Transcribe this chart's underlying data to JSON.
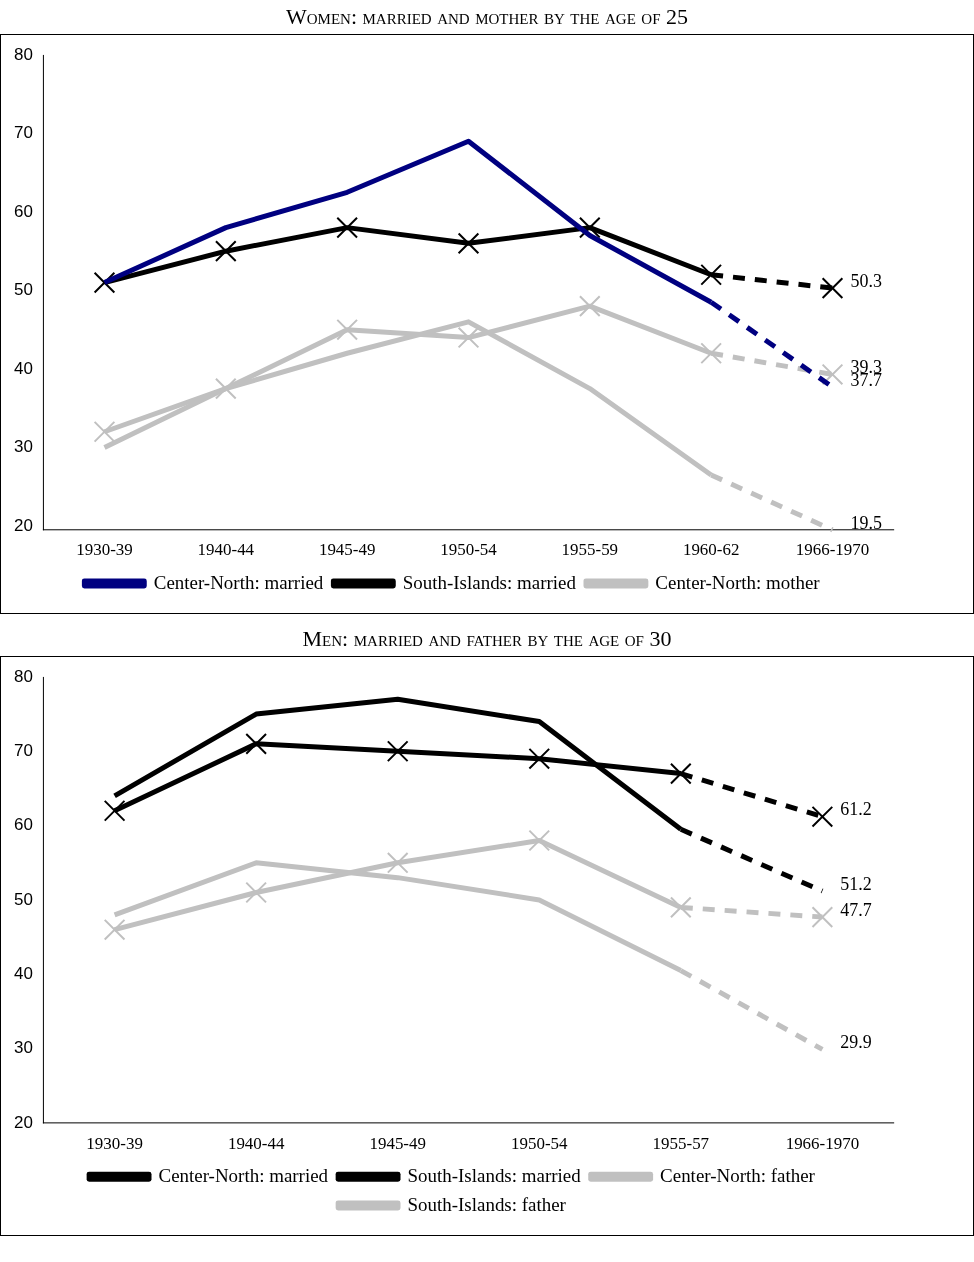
{
  "chart_data": [
    {
      "type": "line",
      "title": "Women: married and mother by the age of 25",
      "categories": [
        "1930-39",
        "1940-44",
        "1945-49",
        "1950-54",
        "1955-59",
        "1960-62",
        "1966-1970"
      ],
      "ylim": [
        19.5,
        80
      ],
      "yticks": [
        20,
        30,
        40,
        50,
        60,
        70,
        80
      ],
      "grid": false,
      "legend": "bottom",
      "series": [
        {
          "name": "Center-North: married",
          "color": "#000080",
          "marker": "none",
          "line_style": "solid",
          "values": [
            51,
            58,
            62.5,
            69,
            57,
            48.5,
            null
          ]
        },
        {
          "name": "South-Islands: married",
          "color": "#000000",
          "marker": "cross",
          "line_style": "solid",
          "values": [
            51,
            55,
            58,
            56,
            58,
            52,
            null
          ]
        },
        {
          "name": "Center-North: mother",
          "color": "#c0c0c0",
          "marker": "none",
          "line_style": "solid",
          "values": [
            30,
            37.5,
            42,
            46,
            37.5,
            26.5,
            null
          ]
        },
        {
          "color": "#c0c0c0",
          "marker": "cross",
          "line_style": "solid",
          "values": [
            32,
            37.5,
            45,
            44,
            48,
            42,
            null
          ]
        },
        {
          "color": "#000080",
          "marker": "none",
          "line_style": "dashed",
          "values": [
            null,
            null,
            null,
            null,
            null,
            48.5,
            37.7
          ],
          "value_labels": [
            null,
            null,
            null,
            null,
            null,
            null,
            "37.7"
          ]
        },
        {
          "color": "#000000",
          "marker": "cross",
          "line_style": "dashed",
          "values": [
            null,
            null,
            null,
            null,
            null,
            52,
            50.3
          ],
          "value_labels": [
            null,
            null,
            null,
            null,
            null,
            null,
            "50.3"
          ]
        },
        {
          "color": "#c0c0c0",
          "marker": "none",
          "line_style": "dashed",
          "values": [
            null,
            null,
            null,
            null,
            null,
            26.5,
            19.5
          ],
          "value_labels": [
            null,
            null,
            null,
            null,
            null,
            null,
            "19.5"
          ]
        },
        {
          "color": "#c0c0c0",
          "marker": "cross",
          "line_style": "dashed",
          "values": [
            null,
            null,
            null,
            null,
            null,
            42,
            39.3
          ],
          "value_labels": [
            null,
            null,
            null,
            null,
            null,
            null,
            "39.3"
          ]
        }
      ]
    },
    {
      "type": "line",
      "title": "Men: married and father by the age of 30",
      "categories": [
        "1930-39",
        "1940-44",
        "1945-49",
        "1950-54",
        "1955-57",
        "1966-1970"
      ],
      "ylim": [
        20,
        80
      ],
      "yticks": [
        20,
        30,
        40,
        50,
        60,
        70,
        80
      ],
      "grid": false,
      "legend": "bottom",
      "series": [
        {
          "name": "Center-North: married",
          "color": "#000000",
          "marker": "none",
          "line_style": "solid",
          "values": [
            64,
            75,
            77,
            74,
            59.5,
            null
          ]
        },
        {
          "name": "South-Islands: married",
          "color": "#000000",
          "marker": "cross",
          "line_style": "solid",
          "values": [
            62,
            71,
            70,
            69,
            67,
            null
          ]
        },
        {
          "name": "Center-North: father",
          "color": "#c0c0c0",
          "marker": "none",
          "line_style": "solid",
          "values": [
            48,
            55,
            53,
            50,
            40.5,
            null
          ]
        },
        {
          "name": "South-Islands: father",
          "color": "#c0c0c0",
          "marker": "cross",
          "line_style": "solid",
          "values": [
            46,
            51,
            55,
            58,
            49,
            null
          ]
        },
        {
          "color": "#000000",
          "marker": "none",
          "line_style": "dashed",
          "values": [
            null,
            null,
            null,
            null,
            59.5,
            51.2
          ],
          "value_labels": [
            null,
            null,
            null,
            null,
            null,
            "51.2"
          ]
        },
        {
          "color": "#000000",
          "marker": "cross",
          "line_style": "dashed",
          "values": [
            null,
            null,
            null,
            null,
            67,
            61.2
          ],
          "value_labels": [
            null,
            null,
            null,
            null,
            null,
            "61.2"
          ]
        },
        {
          "color": "#c0c0c0",
          "marker": "none",
          "line_style": "dashed",
          "values": [
            null,
            null,
            null,
            null,
            40.5,
            29.9
          ],
          "value_labels": [
            null,
            null,
            null,
            null,
            null,
            "29.9"
          ]
        },
        {
          "color": "#c0c0c0",
          "marker": "cross",
          "line_style": "dashed",
          "values": [
            null,
            null,
            null,
            null,
            49,
            47.7
          ],
          "value_labels": [
            null,
            null,
            null,
            null,
            null,
            "47.7"
          ]
        }
      ]
    }
  ]
}
